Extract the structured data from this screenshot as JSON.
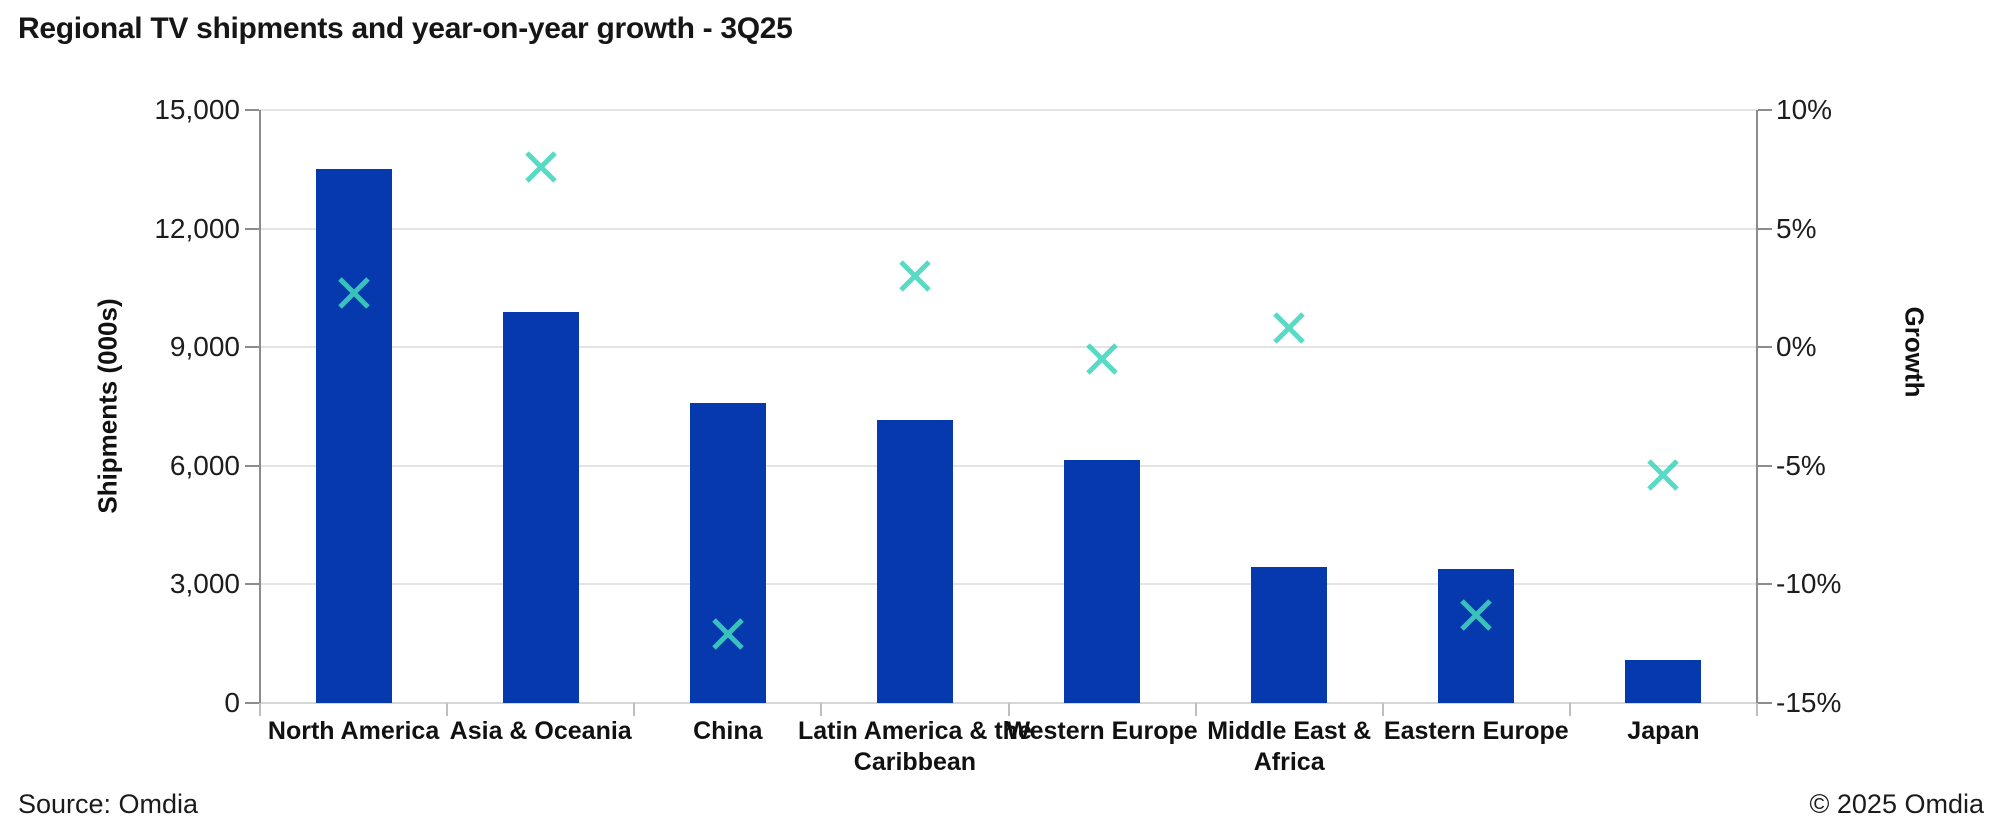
{
  "page": {
    "title": "Regional TV shipments and year-on-year growth - 3Q25",
    "footer": {
      "source": "Source: Omdia",
      "copyright": "© 2025 Omdia"
    }
  },
  "chart_data": {
    "type": "bar",
    "subtype": "combo-bar-with-scatter-x-markers",
    "title": "Regional TV shipments and year-on-year growth - 3Q25",
    "categories": [
      "North America",
      "Asia & Oceania",
      "China",
      "Latin America & the Caribbean",
      "Western Europe",
      "Middle East & Africa",
      "Eastern Europe",
      "Japan"
    ],
    "category_display_lines": [
      "North America",
      "Asia & Oceania",
      "China",
      "Latin America & the\nCaribbean",
      "Western Europe",
      "Middle East &\nAfrica",
      "Eastern Europe",
      "Japan"
    ],
    "series": [
      {
        "name": "Shipments (000s)",
        "type": "bar",
        "axis": "left",
        "values": [
          13500,
          9900,
          7600,
          7150,
          6150,
          3450,
          3400,
          1100
        ]
      },
      {
        "name": "Growth",
        "type": "scatter",
        "marker": "x",
        "axis": "right",
        "values": [
          2.3,
          7.6,
          -12.1,
          3.0,
          -0.5,
          0.8,
          -11.3,
          -5.4
        ]
      }
    ],
    "left_axis": {
      "label": "Shipments (000s)",
      "min": 0,
      "max": 15000,
      "step": 3000,
      "tick_labels": [
        "15,000",
        "12,000",
        "9,000",
        "6,000",
        "3,000",
        "0"
      ]
    },
    "right_axis": {
      "label": "Growth",
      "min": -15,
      "max": 10,
      "step": 5,
      "tick_labels": [
        "10%",
        "5%",
        "0%",
        "-5%",
        "-10%",
        "-15%"
      ]
    },
    "grid": true,
    "legend": "none",
    "colors": {
      "bar": "#0639AD",
      "marker": "#41D6BE",
      "gridline": "#E4E4E4",
      "axis_line": "#8C8C8C",
      "baseline": "#D6D6D6",
      "boundary_tick": "#BFBFBF",
      "text": "#161616"
    }
  }
}
